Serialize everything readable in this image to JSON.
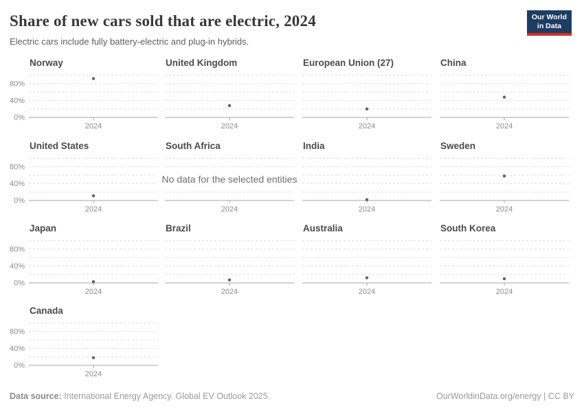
{
  "header": {
    "title": "Share of new cars sold that are electric, 2024",
    "subtitle": "Electric cars include fully battery-electric and plug-in hybrids.",
    "logo_line1": "Our World",
    "logo_line2": "in Data"
  },
  "footer": {
    "source_label": "Data source:",
    "source_text": " International Energy Agency. Global EV Outlook 2025.",
    "right_text": "OurWorldinData.org/energy | CC BY"
  },
  "chart_data": {
    "type": "scatter",
    "title": "Share of new cars sold that are electric, 2024",
    "x": 2024,
    "x_tick_label": "2024",
    "unit": "%",
    "ylim": [
      0,
      100
    ],
    "grid": true,
    "grid_interval": 20,
    "y_tick_labels": [
      "0%",
      "40%",
      "80%"
    ],
    "y_tick_values": [
      0,
      40,
      80
    ],
    "no_data_text": "No data for the selected entities",
    "facets": [
      {
        "name": "Norway",
        "value": 92
      },
      {
        "name": "United Kingdom",
        "value": 28
      },
      {
        "name": "European Union (27)",
        "value": 20
      },
      {
        "name": "China",
        "value": 48
      },
      {
        "name": "United States",
        "value": 11
      },
      {
        "name": "South Africa",
        "value": null
      },
      {
        "name": "India",
        "value": 2
      },
      {
        "name": "Sweden",
        "value": 58
      },
      {
        "name": "Japan",
        "value": 3
      },
      {
        "name": "Brazil",
        "value": 7
      },
      {
        "name": "Australia",
        "value": 12
      },
      {
        "name": "South Korea",
        "value": 10
      },
      {
        "name": "Canada",
        "value": 18
      }
    ],
    "colors": {
      "point": "#44639c",
      "gridline": "#dcdcdc",
      "axis": "#a5a5a5",
      "tick_label": "#8c8c8c",
      "facet_title": "#4a4a4a",
      "no_data_text": "#6e6e6e",
      "logo_bg": "#1d3d63",
      "logo_accent": "#cf2e28"
    }
  }
}
